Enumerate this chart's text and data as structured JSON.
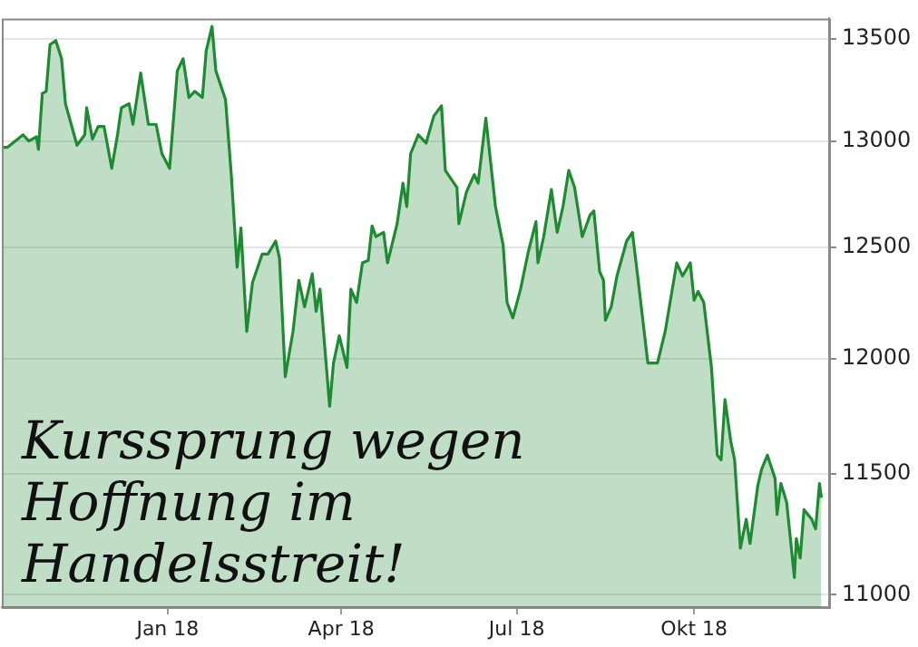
{
  "chart_data": {
    "type": "area",
    "x": [
      "2017-10-07",
      "2017-10-10",
      "2017-10-18",
      "2017-10-21",
      "2017-10-25",
      "2017-10-26",
      "2017-10-28",
      "2017-10-30",
      "2017-11-01",
      "2017-11-04",
      "2017-11-07",
      "2017-11-09",
      "2017-11-15",
      "2017-11-19",
      "2017-11-20",
      "2017-11-23",
      "2017-11-26",
      "2017-11-29",
      "2017-12-03",
      "2017-12-06",
      "2017-12-08",
      "2017-12-12",
      "2017-12-14",
      "2017-12-18",
      "2017-12-22",
      "2017-12-26",
      "2017-12-29",
      "2018-01-02",
      "2018-01-06",
      "2018-01-09",
      "2018-01-12",
      "2018-01-15",
      "2018-01-19",
      "2018-01-21",
      "2018-01-24",
      "2018-01-26",
      "2018-01-31",
      "2018-02-03",
      "2018-02-06",
      "2018-02-08",
      "2018-02-11",
      "2018-02-14",
      "2018-02-19",
      "2018-02-22",
      "2018-02-26",
      "2018-02-28",
      "2018-03-03",
      "2018-03-07",
      "2018-03-10",
      "2018-03-13",
      "2018-03-17",
      "2018-03-19",
      "2018-03-21",
      "2018-03-26",
      "2018-03-28",
      "2018-03-31",
      "2018-04-04",
      "2018-04-06",
      "2018-04-09",
      "2018-04-12",
      "2018-04-15",
      "2018-04-17",
      "2018-04-19",
      "2018-04-23",
      "2018-04-25",
      "2018-04-30",
      "2018-05-03",
      "2018-05-05",
      "2018-05-07",
      "2018-05-11",
      "2018-05-15",
      "2018-05-19",
      "2018-05-23",
      "2018-05-25",
      "2018-05-31",
      "2018-06-01",
      "2018-06-05",
      "2018-06-09",
      "2018-06-11",
      "2018-06-15",
      "2018-06-20",
      "2018-06-24",
      "2018-06-26",
      "2018-06-29",
      "2018-07-03",
      "2018-07-07",
      "2018-07-11",
      "2018-07-12",
      "2018-07-15",
      "2018-07-19",
      "2018-07-22",
      "2018-07-25",
      "2018-07-28",
      "2018-07-31",
      "2018-08-04",
      "2018-08-08",
      "2018-08-10",
      "2018-08-13",
      "2018-08-15",
      "2018-08-16",
      "2018-08-19",
      "2018-08-22",
      "2018-08-27",
      "2018-08-30",
      "2018-09-02",
      "2018-09-07",
      "2018-09-12",
      "2018-09-16",
      "2018-09-22",
      "2018-09-25",
      "2018-09-29",
      "2018-10-01",
      "2018-10-03",
      "2018-10-06",
      "2018-10-10",
      "2018-10-13",
      "2018-10-15",
      "2018-10-17",
      "2018-10-20",
      "2018-10-22",
      "2018-10-25",
      "2018-10-28",
      "2018-10-30",
      "2018-11-03",
      "2018-11-05",
      "2018-11-08",
      "2018-11-12",
      "2018-11-13",
      "2018-11-15",
      "2018-11-18",
      "2018-11-22",
      "2018-11-23",
      "2018-11-25",
      "2018-11-27",
      "2018-12-01",
      "2018-12-03",
      "2018-12-05",
      "2018-12-06"
    ],
    "series": [
      {
        "color": "#1e8a32",
        "values": [
          12970,
          12970,
          13030,
          13000,
          13020,
          12960,
          13230,
          13240,
          13470,
          13490,
          13400,
          13180,
          12980,
          13030,
          13160,
          13010,
          13070,
          13070,
          12870,
          13030,
          13160,
          13180,
          13080,
          13330,
          13080,
          13080,
          12940,
          12870,
          13340,
          13400,
          13210,
          13240,
          13210,
          13440,
          13560,
          13340,
          13200,
          12840,
          12410,
          12590,
          12120,
          12340,
          12470,
          12470,
          12530,
          12450,
          11920,
          12120,
          12350,
          12230,
          12380,
          12210,
          12310,
          11790,
          11980,
          12100,
          11960,
          12310,
          12250,
          12430,
          12440,
          12600,
          12550,
          12570,
          12430,
          12610,
          12800,
          12690,
          12940,
          13030,
          12990,
          13120,
          13170,
          12860,
          12780,
          12610,
          12760,
          12840,
          12800,
          13110,
          12690,
          12510,
          12250,
          12180,
          12310,
          12480,
          12620,
          12430,
          12550,
          12770,
          12570,
          12690,
          12860,
          12780,
          12550,
          12650,
          12670,
          12390,
          12350,
          12170,
          12230,
          12370,
          12530,
          12570,
          12350,
          11980,
          11980,
          12120,
          12430,
          12370,
          12430,
          12260,
          12300,
          12250,
          11960,
          11580,
          11560,
          11820,
          11640,
          11560,
          11190,
          11310,
          11210,
          11450,
          11520,
          11580,
          11480,
          11330,
          11460,
          11380,
          11070,
          11230,
          11150,
          11350,
          11310,
          11270,
          11460,
          11400
        ]
      }
    ],
    "xlim": [
      "2017-10-07",
      "2018-12-10"
    ],
    "xticks": [
      {
        "value": "2018-01-01",
        "label": "Jan 18"
      },
      {
        "value": "2018-04-01",
        "label": "Apr 18"
      },
      {
        "value": "2018-07-01",
        "label": "Jul 18"
      },
      {
        "value": "2018-10-01",
        "label": "Okt 18"
      }
    ],
    "ylim": [
      10950,
      13600
    ],
    "yticks": [
      11000,
      11500,
      12000,
      12500,
      13000,
      13500
    ],
    "log": true,
    "grid": "y",
    "legend": false,
    "annotations": [
      "Kurssprung wegen Hoffnung im Handelsstreit!"
    ]
  }
}
